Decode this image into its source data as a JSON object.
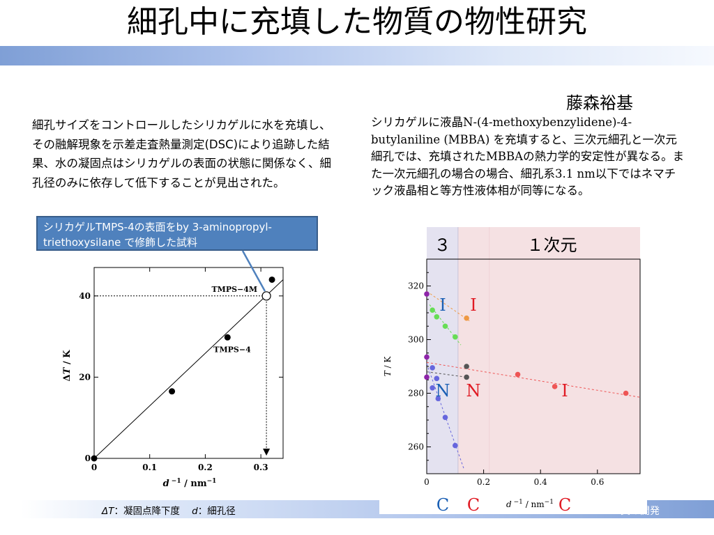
{
  "slide": {
    "title": "細孔中に充填した物質の物性研究",
    "author": "藤森裕基",
    "left_paragraph": "細孔サイズをコントロールしたシリカゲルに水を充填し、その融解現象を示差走査熱量測定(DSC)により追跡した結果、水の凝固点はシリカゲルの表面の状態に関係なく、細孔径のみに依存して低下することが見出された。",
    "right_paragraph": {
      "part1": "シリカゲルに液晶",
      "part2": "N-(4-methoxybenzylidene)-4-butylaniline (MBBA) ",
      "part3": "を充填すると、三次元細孔と一次元細孔では、充填された",
      "part4": "MBBA",
      "part5": "の熱力学的安定性が異なる。また一次元細孔の場合の場合、細孔系",
      "part6": "3.1 nm",
      "part7": "以下ではネマチック液晶相と等方性液体相が同等になる。"
    },
    "callout": "シリカゲルTMPS-4の表面をby 3-aminopropyl-triethoxysilane で修飾した試料",
    "bottom_caption": {
      "dT": "ΔT",
      "dT_desc": "：凝固点降下度",
      "d": "d",
      "d_desc": "：細孔径"
    },
    "footer_right": "質の開発"
  },
  "chart_data": [
    {
      "type": "scatter",
      "title": "",
      "xlabel": "d^-1 / nm^-1",
      "ylabel": "ΔT / K",
      "xlim": [
        0,
        0.34
      ],
      "ylim": [
        0,
        47
      ],
      "x_ticks": [
        "0",
        "0.1",
        "0.2",
        "0.3"
      ],
      "y_ticks": [
        "0",
        "20",
        "40"
      ],
      "points": [
        {
          "x": 0,
          "y": 0
        },
        {
          "x": 0.14,
          "y": 16.5
        },
        {
          "x": 0.24,
          "y": 29.8
        },
        {
          "x": 0.32,
          "y": 44
        }
      ],
      "open_point": {
        "x": 0.31,
        "y": 40,
        "label": "TMPS−4M"
      },
      "labeled_point": {
        "x": 0.24,
        "y": 29.8,
        "label": "TMPS−4"
      },
      "fit_line": [
        {
          "x": 0,
          "y": 0
        },
        {
          "x": 0.34,
          "y": 44
        }
      ],
      "grid": false
    },
    {
      "type": "scatter",
      "title": "",
      "xlabel": "d^-1 / nm^-1",
      "ylabel": "T / K",
      "xlim": [
        0,
        0.75
      ],
      "ylim": [
        250,
        330
      ],
      "x_ticks": [
        "0",
        "0.2",
        "0.4",
        "0.6"
      ],
      "y_ticks": [
        "260",
        "280",
        "300",
        "320"
      ],
      "regions": [
        {
          "label": "３",
          "x_from": 0,
          "x_to": 0.11,
          "color": "#e4e2f0"
        },
        {
          "label": "１次元",
          "x_from": 0.11,
          "x_to": 0.75,
          "color": "#f5e1e3"
        }
      ],
      "phase_labels": [
        {
          "text": "I",
          "color": "#1a5fb4"
        },
        {
          "text": "I",
          "color": "#e01b24"
        },
        {
          "text": "N",
          "color": "#1a5fb4"
        },
        {
          "text": "N",
          "color": "#e01b24"
        },
        {
          "text": "I",
          "color": "#e01b24"
        },
        {
          "text": "C",
          "color": "#1a5fb4"
        },
        {
          "text": "C",
          "color": "#e01b24"
        },
        {
          "text": "C",
          "color": "#e01b24"
        }
      ],
      "series": [
        {
          "color": "#8e24aa",
          "points": [
            {
              "x": 0,
              "y": 317
            },
            {
              "x": 0,
              "y": 293.5
            },
            {
              "x": 0,
              "y": 286
            }
          ]
        },
        {
          "color": "#66dd55",
          "points": [
            {
              "x": 0.02,
              "y": 311
            },
            {
              "x": 0.035,
              "y": 308.5
            },
            {
              "x": 0.065,
              "y": 305
            },
            {
              "x": 0.1,
              "y": 301
            }
          ]
        },
        {
          "color": "#ee9944",
          "points": [
            {
              "x": 0.14,
              "y": 308
            }
          ]
        },
        {
          "color": "#6666dd",
          "points": [
            {
              "x": 0.02,
              "y": 289.5
            },
            {
              "x": 0.02,
              "y": 282
            },
            {
              "x": 0.035,
              "y": 285.5
            },
            {
              "x": 0.04,
              "y": 278
            },
            {
              "x": 0.065,
              "y": 271
            },
            {
              "x": 0.1,
              "y": 260.5
            }
          ]
        },
        {
          "color": "#555555",
          "points": [
            {
              "x": 0.14,
              "y": 290
            },
            {
              "x": 0.14,
              "y": 286
            }
          ]
        },
        {
          "color": "#ee5555",
          "points": [
            {
              "x": 0.32,
              "y": 287
            },
            {
              "x": 0.45,
              "y": 282.5
            },
            {
              "x": 0.7,
              "y": 280
            }
          ]
        }
      ],
      "trend_lines": [
        {
          "color": "#ee5555",
          "from": {
            "x": 0,
            "y": 291.5
          },
          "to": {
            "x": 0.75,
            "y": 278.5
          }
        },
        {
          "color": "#ee9944",
          "from": {
            "x": 0,
            "y": 318
          },
          "to": {
            "x": 0.15,
            "y": 307
          }
        },
        {
          "color": "#66dd55",
          "from": {
            "x": 0.01,
            "y": 313
          },
          "to": {
            "x": 0.12,
            "y": 298
          }
        },
        {
          "color": "#555555",
          "from": {
            "x": 0,
            "y": 288
          },
          "to": {
            "x": 0.14,
            "y": 286
          }
        },
        {
          "color": "#6666dd",
          "from": {
            "x": 0,
            "y": 291
          },
          "to": {
            "x": 0.13,
            "y": 252
          }
        }
      ],
      "grid": false
    }
  ]
}
